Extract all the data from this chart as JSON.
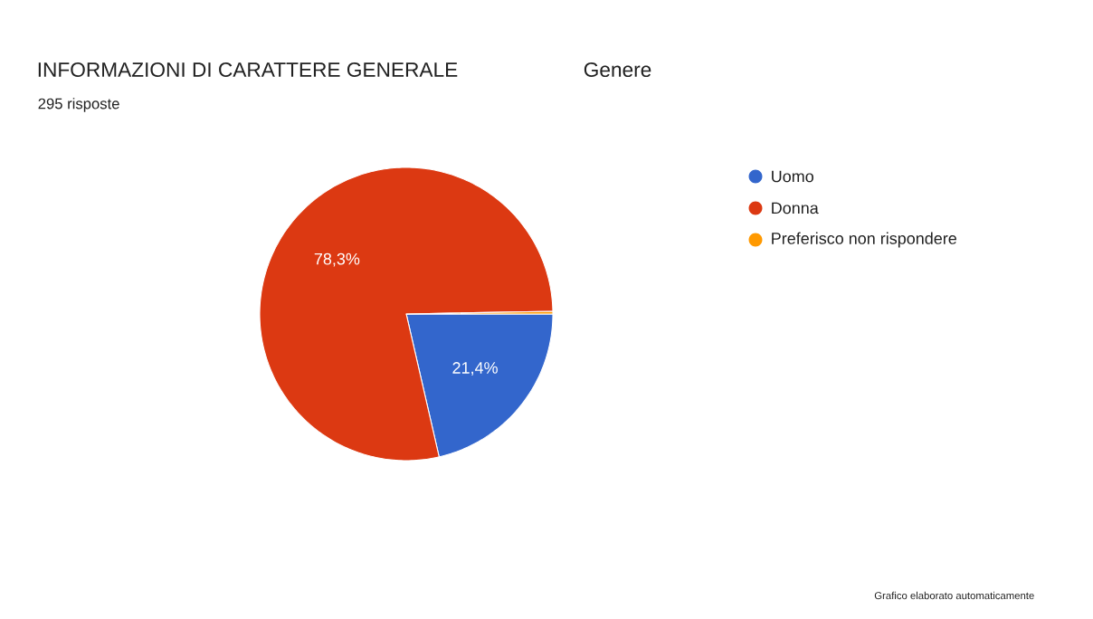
{
  "chart_data": {
    "type": "pie",
    "title": "INFORMAZIONI DI CARATTERE GENERALE",
    "subtitle": "295 risposte",
    "annotations": [
      "Genere",
      "Grafico elaborato automaticamente"
    ],
    "categories": [
      "Uomo",
      "Donna",
      "Preferisco non rispondere"
    ],
    "values": [
      21.4,
      78.3,
      0.3
    ],
    "colors": [
      "#3366cc",
      "#dc3912",
      "#ff9900"
    ],
    "value_labels": [
      "21,4%",
      "78,3%",
      null
    ],
    "legend": "right"
  }
}
